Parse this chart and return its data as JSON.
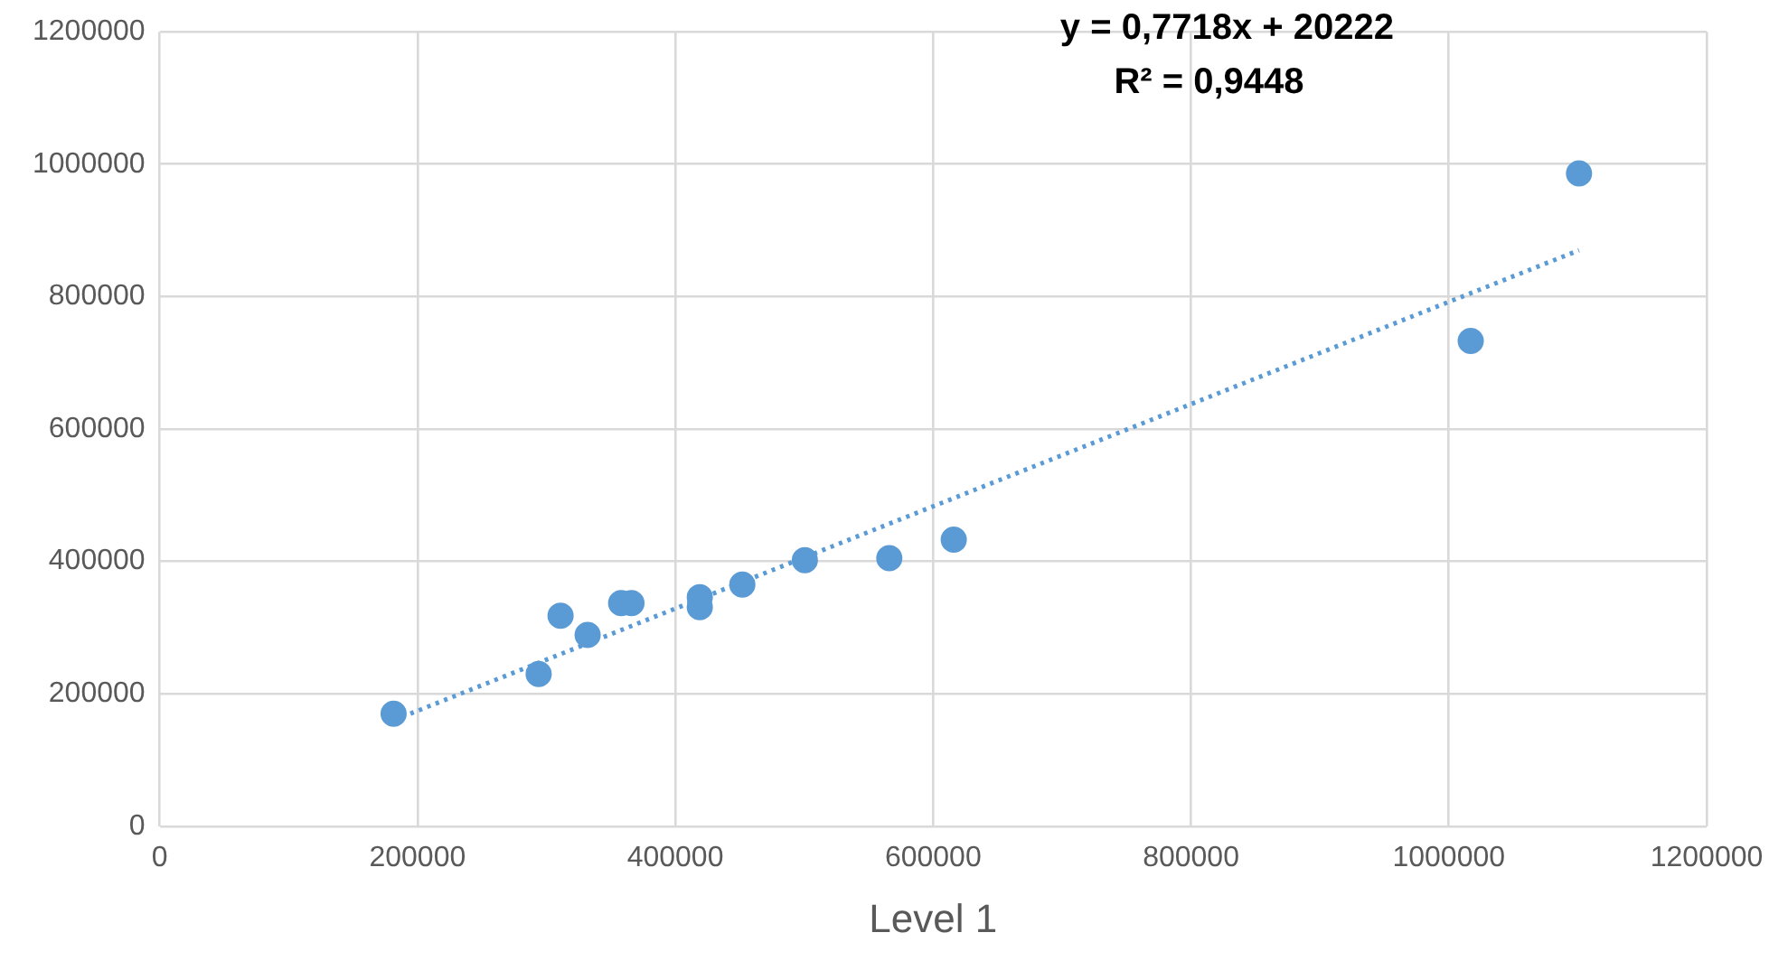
{
  "chart_data": {
    "type": "scatter",
    "xlabel": "Level 1",
    "xlim": [
      0,
      1200000
    ],
    "xticks": [
      0,
      200000,
      400000,
      600000,
      800000,
      1000000,
      1200000
    ],
    "ylim": [
      0,
      1200000
    ],
    "yticks": [
      0,
      200000,
      400000,
      600000,
      800000,
      1000000,
      1200000
    ],
    "grid": true,
    "legend": false,
    "marker": "circle",
    "annotations": [
      "y = 0,7718x + 20222",
      "R² = 0,9448"
    ],
    "series": [
      {
        "type": "scatter",
        "color": "#5b9bd5",
        "x": [
          181500,
          294000,
          311000,
          332000,
          358000,
          366000,
          419000,
          419000,
          452000,
          500500,
          566000,
          616000,
          1017000,
          1101000
        ],
        "values": [
          170000,
          230000,
          318000,
          289000,
          337000,
          337000,
          346000,
          331000,
          365000,
          402000,
          405000,
          433000,
          733000,
          986000
        ]
      },
      {
        "type": "line",
        "color": "#5b9bd5",
        "line_style": "dotted",
        "marker": "none",
        "x": [
          181500,
          1101000
        ],
        "values": [
          160000,
          870000
        ]
      }
    ]
  }
}
